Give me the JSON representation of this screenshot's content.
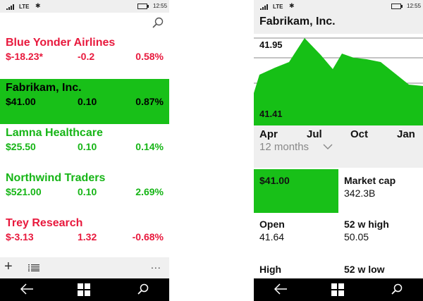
{
  "status_bar": {
    "network": "LTE",
    "time": "12:55"
  },
  "left": {
    "stocks": [
      {
        "name": "Blue Yonder Airlines",
        "price": "$-18.23*",
        "change": "-0.2",
        "pct": "0.58%",
        "trend": "down"
      },
      {
        "name": "Fabrikam, Inc.",
        "price": "$41.00",
        "change": "0.10",
        "pct": "0.87%",
        "trend": "selected"
      },
      {
        "name": "Lamna Healthcare",
        "price": "$25.50",
        "change": "0.10",
        "pct": "0.14%",
        "trend": "up"
      },
      {
        "name": "Northwind Traders",
        "price": "$521.00",
        "change": "0.10",
        "pct": "2.69%",
        "trend": "up"
      },
      {
        "name": "Trey Research",
        "price": "$-3.13",
        "change": "1.32",
        "pct": "-0.68%",
        "trend": "down"
      }
    ],
    "app_bar": {
      "more": "..."
    }
  },
  "right": {
    "company": "Fabrikam, Inc.",
    "chart_hi": "41.95",
    "chart_lo": "41.41",
    "months": [
      "Apr",
      "Jul",
      "Oct",
      "Jan"
    ],
    "range": "12 months",
    "tiles": {
      "price": "$41.00",
      "market_cap_label": "Market cap",
      "market_cap_value": "342.3B",
      "open_label": "Open",
      "open_value": "41.64",
      "high52_label": "52 w high",
      "high52_value": "50.05",
      "high_label": "High",
      "low52_label": "52 w low"
    }
  },
  "colors": {
    "green": "#18c018",
    "red": "#e8193d",
    "chart_fill": "#16c016"
  },
  "icons": [
    "search-icon",
    "plus-icon",
    "list-icon",
    "more-icon",
    "back-icon",
    "windows-icon",
    "chevron-down-icon",
    "bluetooth-icon",
    "battery-icon",
    "signal-icon"
  ]
}
